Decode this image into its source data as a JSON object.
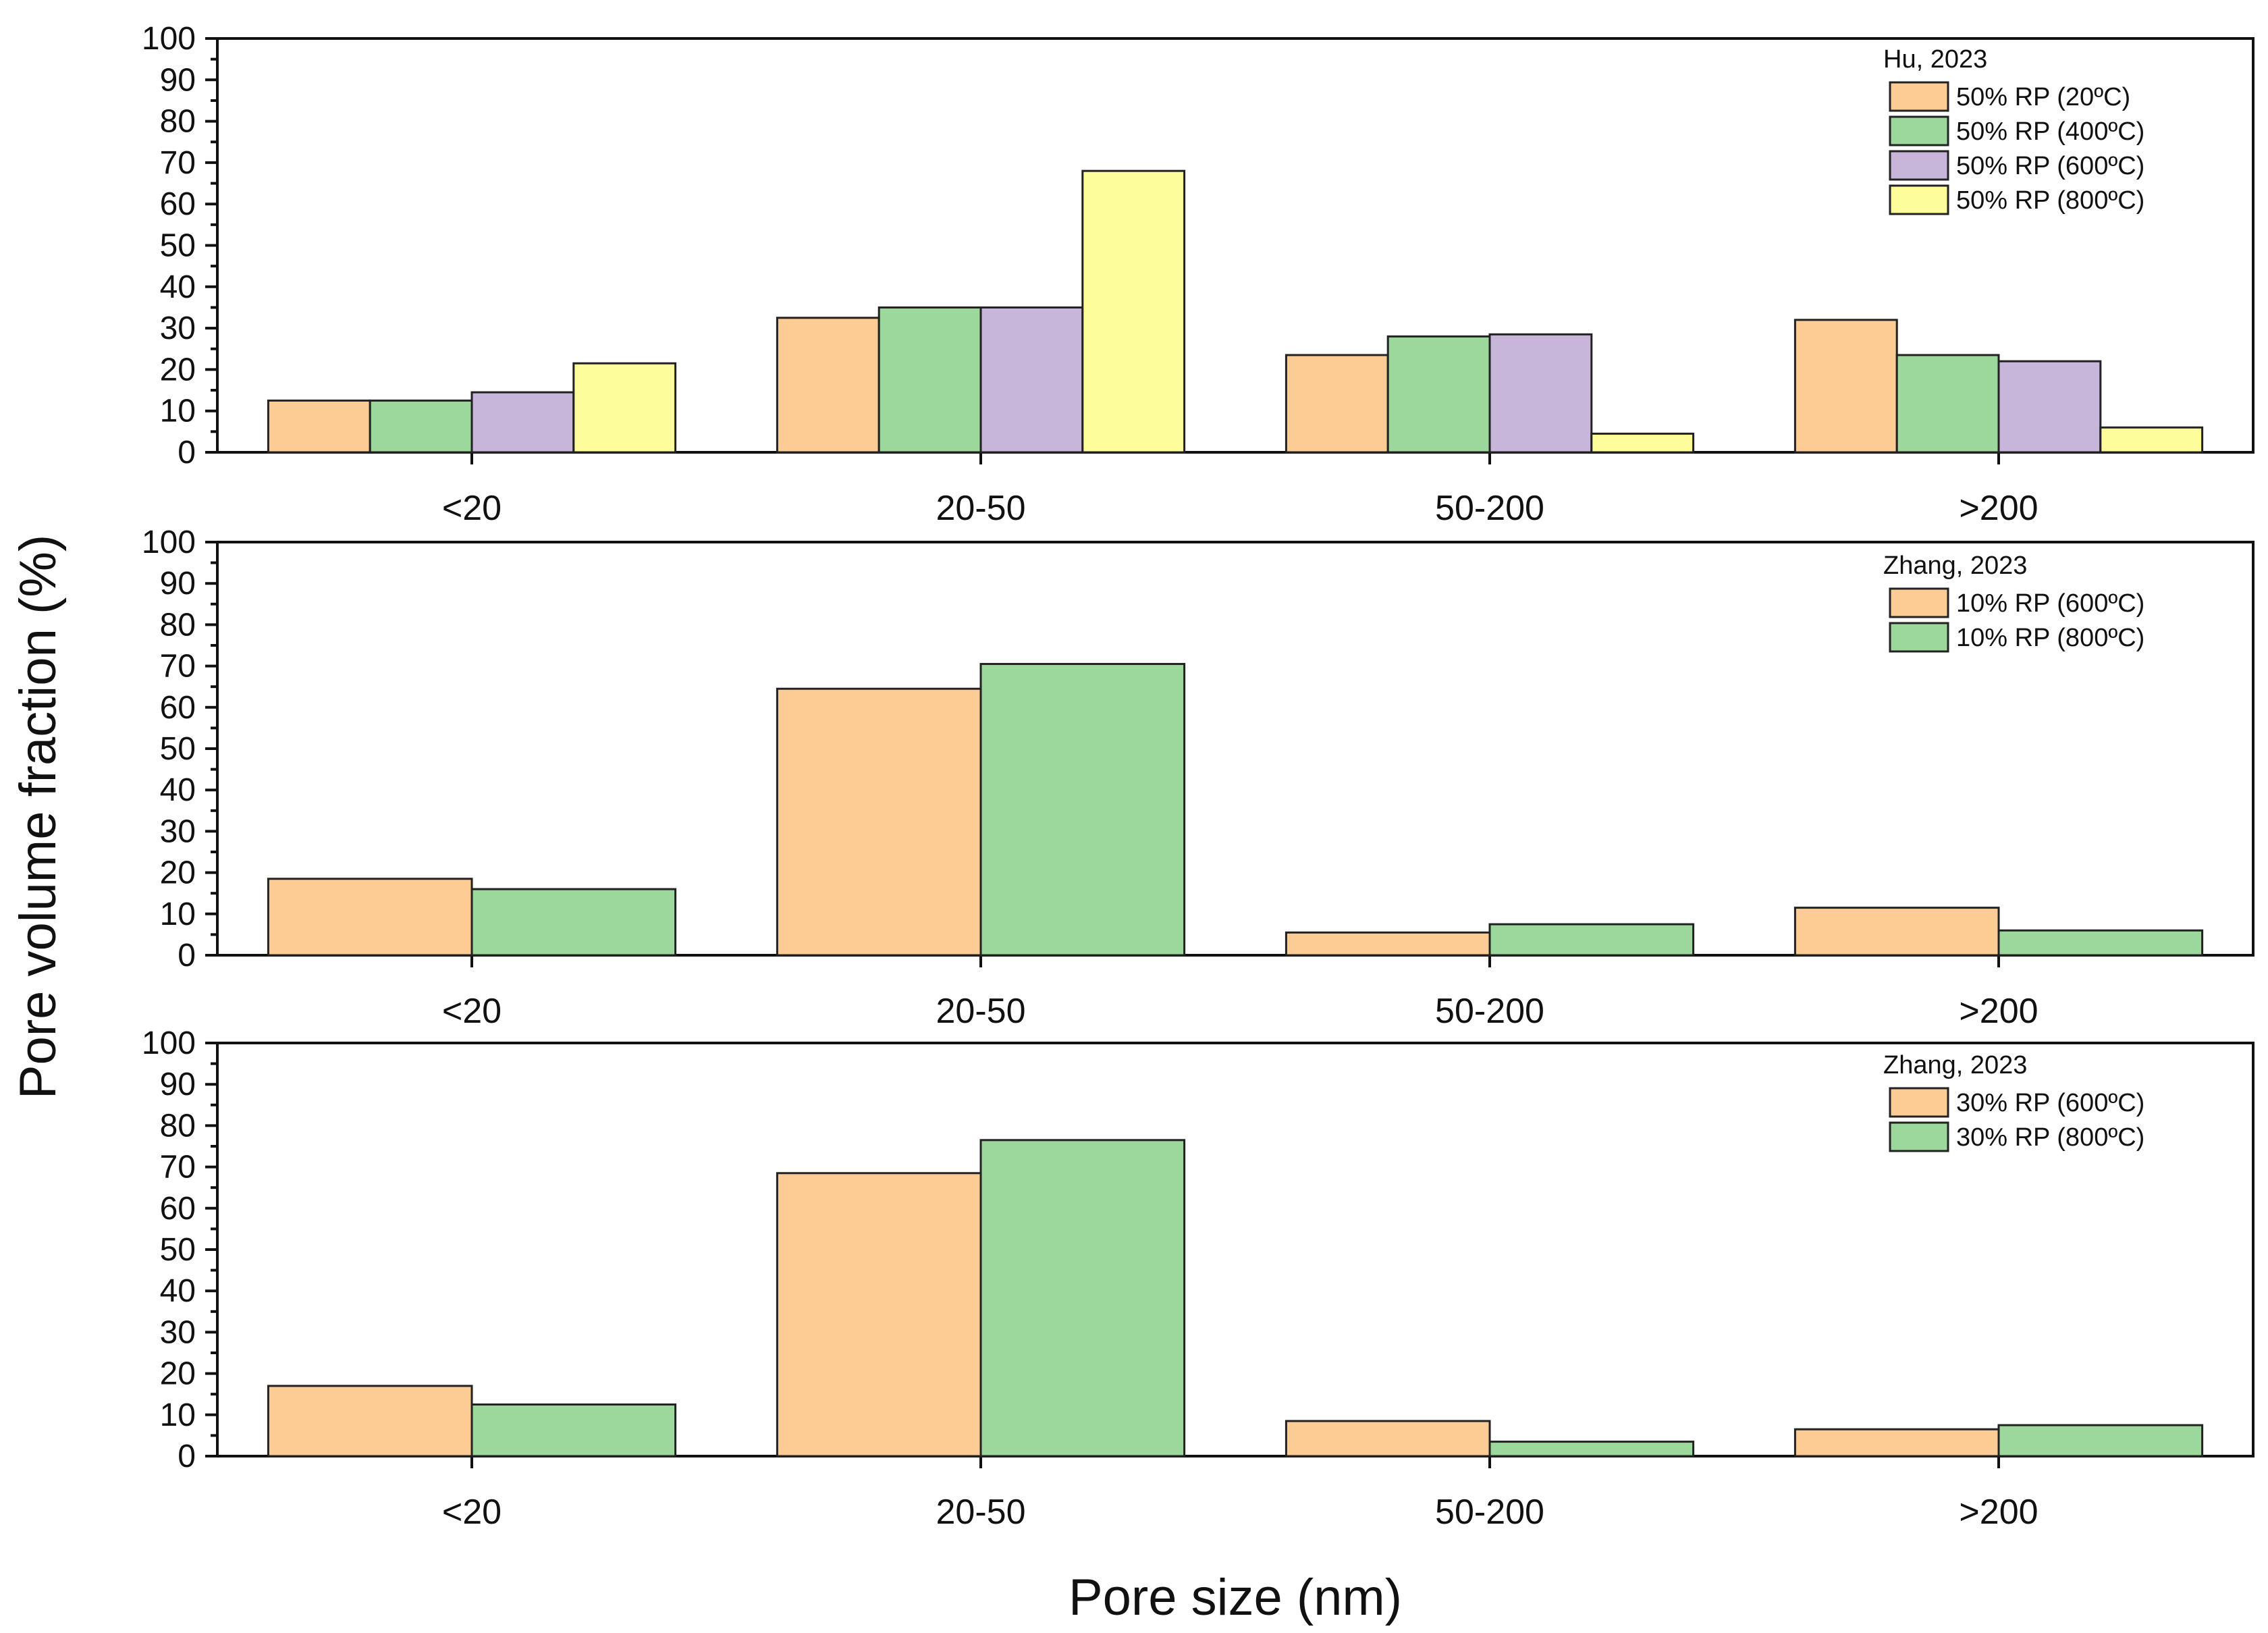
{
  "figure": {
    "ylabel": "Pore volume fraction (%)",
    "xlabel": "Pore size (nm)"
  },
  "chart_data": [
    {
      "type": "bar",
      "legend_title": "Hu, 2023",
      "categories": [
        "<20",
        "20-50",
        "50-200",
        ">200"
      ],
      "ylim": [
        0,
        100
      ],
      "yticks": [
        "0",
        "10",
        "20",
        "30",
        "40",
        "50",
        "60",
        "70",
        "80",
        "90",
        "100"
      ],
      "series": [
        {
          "name": "50% RP (20ºC)",
          "color": "#FDCC95",
          "values": [
            12.5,
            32.5,
            23.5,
            32
          ]
        },
        {
          "name": "50% RP (400ºC)",
          "color": "#9CD79B",
          "values": [
            12.5,
            35,
            28,
            23.5
          ]
        },
        {
          "name": "50% RP (600ºC)",
          "color": "#C7B5DA",
          "values": [
            14.5,
            35,
            28.5,
            22
          ]
        },
        {
          "name": "50% RP (800ºC)",
          "color": "#FDFE9B",
          "values": [
            21.5,
            68,
            4.5,
            6
          ]
        }
      ]
    },
    {
      "type": "bar",
      "legend_title": "Zhang, 2023",
      "categories": [
        "<20",
        "20-50",
        "50-200",
        ">200"
      ],
      "ylim": [
        0,
        100
      ],
      "yticks": [
        "0",
        "10",
        "20",
        "30",
        "40",
        "50",
        "60",
        "70",
        "80",
        "90",
        "100"
      ],
      "series": [
        {
          "name": "10% RP (600ºC)",
          "color": "#FDCC95",
          "values": [
            18.5,
            64.5,
            5.5,
            11.5
          ]
        },
        {
          "name": "10% RP (800ºC)",
          "color": "#9CD79B",
          "values": [
            16,
            70.5,
            7.5,
            6
          ]
        }
      ]
    },
    {
      "type": "bar",
      "legend_title": "Zhang, 2023",
      "categories": [
        "<20",
        "20-50",
        "50-200",
        ">200"
      ],
      "ylim": [
        0,
        100
      ],
      "yticks": [
        "0",
        "10",
        "20",
        "30",
        "40",
        "50",
        "60",
        "70",
        "80",
        "90",
        "100"
      ],
      "series": [
        {
          "name": "30% RP (600ºC)",
          "color": "#FDCC95",
          "values": [
            17,
            68.5,
            8.5,
            6.5
          ]
        },
        {
          "name": "30% RP (800ºC)",
          "color": "#9CD79B",
          "values": [
            12.5,
            76.5,
            3.5,
            7.5
          ]
        }
      ]
    }
  ]
}
